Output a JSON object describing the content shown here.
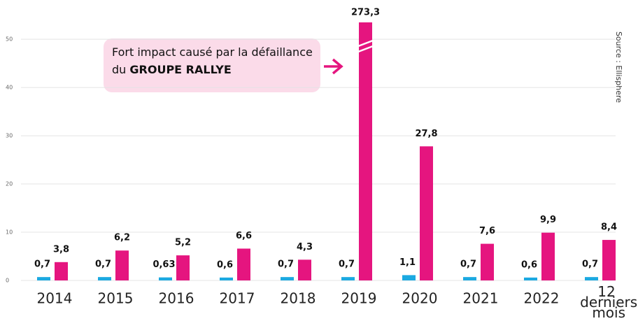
{
  "chart_data": {
    "type": "bar",
    "categories": [
      "2014",
      "2015",
      "2016",
      "2017",
      "2018",
      "2019",
      "2020",
      "2021",
      "2022",
      "12 derniers mois"
    ],
    "series": [
      {
        "color": "#1ba9e1",
        "values": [
          0.7,
          0.7,
          0.63,
          0.6,
          0.7,
          0.7,
          1.1,
          0.7,
          0.6,
          0.7
        ],
        "value_labels": [
          "0,7",
          "0,7",
          "0,63",
          "0,6",
          "0,7",
          "0,7",
          "1,1",
          "0,7",
          "0,6",
          "0,7"
        ]
      },
      {
        "color": "#e5157f",
        "values": [
          3.8,
          6.2,
          5.2,
          6.6,
          4.3,
          273.3,
          27.8,
          7.6,
          9.9,
          8.4
        ],
        "value_labels": [
          "3,8",
          "6,2",
          "5,2",
          "6,6",
          "4,3",
          "273,3",
          "27,8",
          "7,6",
          "9,9",
          "8,4"
        ]
      }
    ],
    "ylim": [
      0,
      53.5
    ],
    "yticks": [
      0,
      10,
      20,
      30,
      40,
      50
    ],
    "grid": true,
    "annotation": {
      "text": "Fort impact causé par la défaillance du",
      "bold": "GROUPE RALLYE"
    },
    "source": "Source : Ellisphere"
  }
}
